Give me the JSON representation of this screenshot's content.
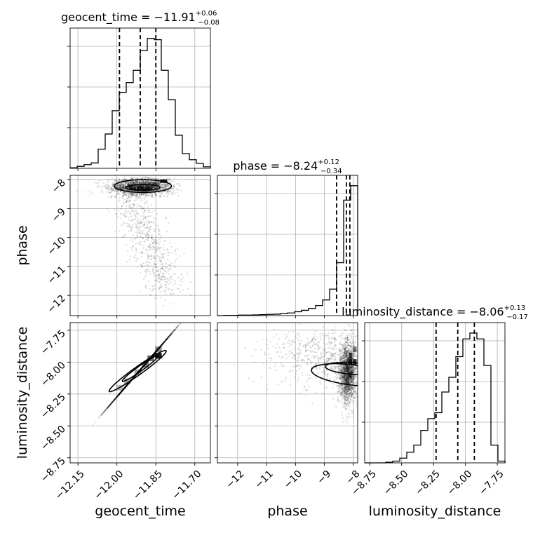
{
  "chart_data": {
    "type": "corner",
    "parameters": [
      "geocent_time",
      "phase",
      "luminosity_distance"
    ],
    "titles": [
      {
        "param": "geocent_time",
        "prefix": "geocent_time = ",
        "median": "−11.91",
        "plus": "+0.06",
        "minus": "−0.08"
      },
      {
        "param": "phase",
        "prefix": "phase = ",
        "median": "−8.24",
        "plus": "+0.12",
        "minus": "−0.34"
      },
      {
        "param": "luminosity_distance",
        "prefix": "luminosity_distance = ",
        "median": "−8.06",
        "plus": "+0.13",
        "minus": "−0.17"
      }
    ],
    "axis_labels": {
      "x": [
        "geocent_time",
        "phase",
        "luminosity_distance"
      ],
      "y": [
        "phase",
        "luminosity_distance"
      ]
    },
    "ranges": {
      "geocent_time": [
        -12.18,
        -11.64
      ],
      "phase": [
        -12.7,
        -7.85
      ],
      "luminosity_distance": [
        -8.79,
        -7.69
      ]
    },
    "ticks": {
      "geocent_time": {
        "values": [
          -12.15,
          -12.0,
          -11.85,
          -11.7
        ],
        "labels": [
          "−12.15",
          "−12.00",
          "−11.85",
          "−11.70"
        ]
      },
      "phase": {
        "values": [
          -12,
          -11,
          -10,
          -9,
          -8
        ],
        "labels": [
          "−12",
          "−11",
          "−10",
          "−9",
          "−8"
        ]
      },
      "luminosity_distance": {
        "values": [
          -8.75,
          -8.5,
          -8.25,
          -8.0,
          -7.75
        ],
        "labels": [
          "−8.75",
          "−8.50",
          "−8.25",
          "−8.00",
          "−7.75"
        ]
      }
    },
    "quantiles": {
      "geocent_time": [
        -11.99,
        -11.91,
        -11.85
      ],
      "phase": [
        -8.58,
        -8.24,
        -8.12
      ],
      "luminosity_distance": [
        -8.23,
        -8.06,
        -7.93
      ]
    },
    "histograms": {
      "geocent_time": {
        "edges_range": [
          -12.18,
          -11.64
        ],
        "bins": 20,
        "counts": [
          2,
          8,
          15,
          22,
          78,
          140,
          235,
          310,
          350,
          400,
          480,
          530,
          525,
          400,
          280,
          135,
          60,
          35,
          20,
          6
        ]
      },
      "phase": {
        "edges_range": [
          -12.7,
          -7.85
        ],
        "bins": 20,
        "counts": [
          0,
          1,
          1,
          2,
          2,
          3,
          4,
          5,
          6,
          8,
          11,
          16,
          22,
          30,
          42,
          65,
          110,
          220,
          480,
          540
        ]
      },
      "luminosity_distance": {
        "edges_range": [
          -8.79,
          -7.69
        ],
        "bins": 20,
        "counts": [
          0,
          0,
          0,
          2,
          6,
          16,
          36,
          60,
          110,
          150,
          170,
          240,
          290,
          360,
          420,
          440,
          420,
          330,
          60,
          6
        ]
      }
    },
    "grid": true,
    "colors": {
      "hist": "#000000",
      "points": "#000000",
      "contour": "#000000",
      "grid": "#b0b0b0",
      "axes": "#000000"
    }
  }
}
